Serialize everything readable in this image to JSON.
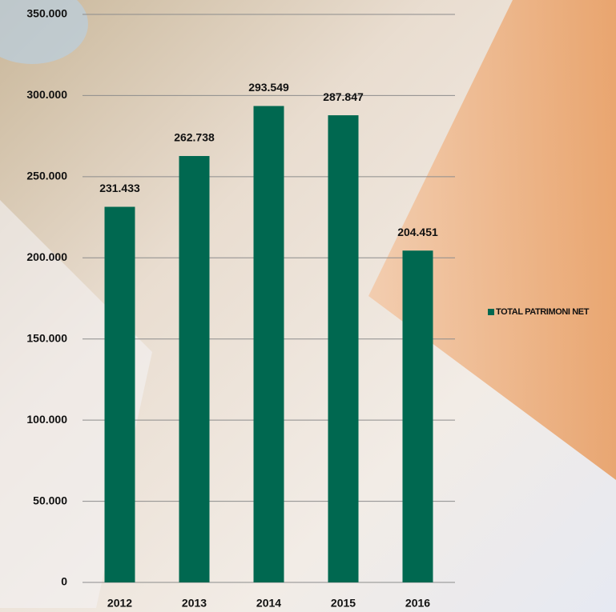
{
  "chart_data": {
    "type": "bar",
    "categories": [
      "2012",
      "2013",
      "2014",
      "2015",
      "2016"
    ],
    "series": [
      {
        "name": "TOTAL PATRIMONI NET",
        "color": "#006850",
        "values": [
          231433,
          262738,
          293549,
          287847,
          204451
        ],
        "value_labels": [
          "231.433",
          "262.738",
          "293.549",
          "287.847",
          "204.451"
        ]
      }
    ],
    "ylim": [
      0,
      350000
    ],
    "yticks": [
      0,
      {
        "value": 50000,
        "label": "50.000"
      },
      {
        "value": 100000,
        "label": "100.000"
      },
      {
        "value": 150000,
        "label": "150.000"
      },
      {
        "value": 200000,
        "label": "200.000"
      },
      {
        "value": 250000,
        "label": "250.000"
      },
      {
        "value": 300000,
        "label": "300.000"
      },
      {
        "value": 350000,
        "label": "350.000"
      }
    ],
    "grid": true,
    "legend": "right"
  }
}
